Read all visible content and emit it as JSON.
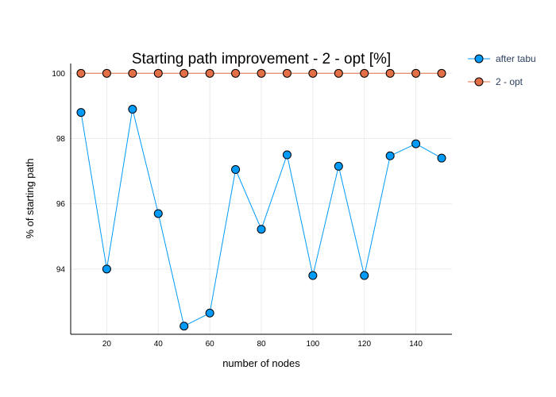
{
  "chart_data": {
    "type": "line",
    "title": "Starting path improvement - 2 - opt [%]",
    "xlabel": "number of nodes",
    "ylabel": "% of starting path",
    "x": [
      10,
      20,
      30,
      40,
      50,
      60,
      70,
      80,
      90,
      100,
      110,
      120,
      130,
      140,
      150
    ],
    "xticks": [
      20,
      40,
      60,
      80,
      100,
      120,
      140
    ],
    "yticks": [
      94,
      96,
      98,
      100
    ],
    "xlim": [
      6,
      154
    ],
    "ylim": [
      92.0,
      100.3
    ],
    "grid": true,
    "legend_position": "top-right-outside",
    "series": [
      {
        "name": "after tabu",
        "color": "#009af9",
        "values": [
          98.8,
          94.0,
          98.9,
          95.7,
          92.25,
          92.65,
          97.05,
          95.22,
          97.5,
          93.8,
          97.15,
          93.8,
          97.47,
          97.84,
          97.4
        ]
      },
      {
        "name": "2 - opt",
        "color": "#e26f46",
        "values": [
          100,
          100,
          100,
          100,
          100,
          100,
          100,
          100,
          100,
          100,
          100,
          100,
          100,
          100,
          100
        ]
      }
    ]
  }
}
